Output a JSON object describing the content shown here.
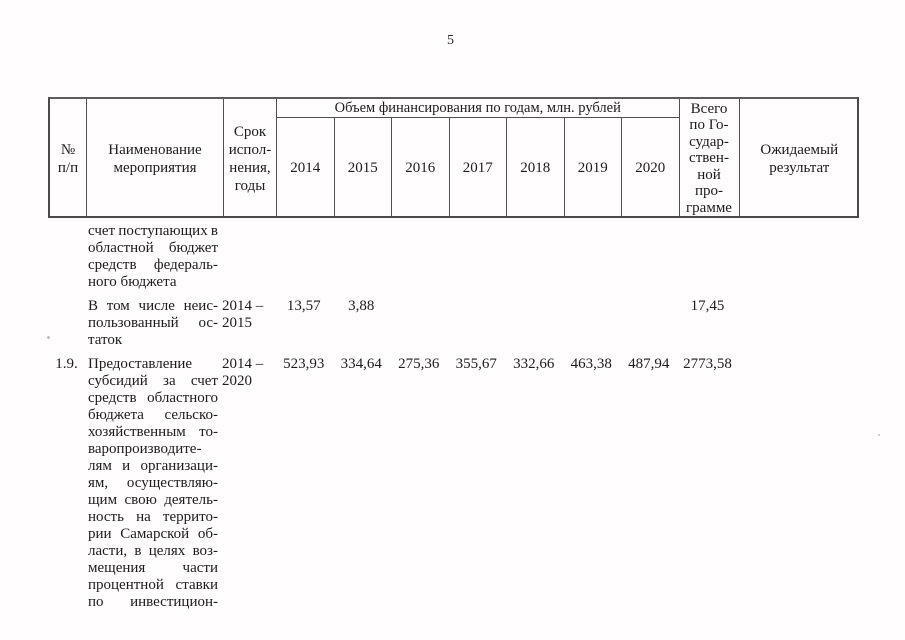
{
  "page_number": "5",
  "table": {
    "header": {
      "num_lines": [
        "№",
        "п/п"
      ],
      "name_lines": [
        "Наименование",
        "мероприятия"
      ],
      "term_lines": [
        "Срок",
        "испол-",
        "нения,",
        "годы"
      ],
      "finance_title": "Объем финансирования по годам, млн. рублей",
      "years": [
        "2014",
        "2015",
        "2016",
        "2017",
        "2018",
        "2019",
        "2020"
      ],
      "total_lines": [
        "Всего",
        "по Го-",
        "судар-",
        "ствен-",
        "ной",
        "про-",
        "грамме"
      ],
      "result_lines": [
        "Ожидаемый",
        "результат"
      ]
    },
    "rows": [
      {
        "num": "",
        "name_lines": [
          {
            "t": "счет поступающих в",
            "j": true
          },
          {
            "t": "областной бюджет",
            "j": true
          },
          {
            "t": "средств федераль-",
            "j": true
          },
          {
            "t": "ного бюджета",
            "j": false
          }
        ],
        "term_lines": [],
        "values": [
          "",
          "",
          "",
          "",
          "",
          "",
          ""
        ],
        "total": "",
        "result": ""
      },
      {
        "num": "",
        "name_lines": [
          {
            "t": "В том числе неис-",
            "j": true
          },
          {
            "t": "пользованный ос-",
            "j": true
          },
          {
            "t": "таток",
            "j": false
          }
        ],
        "term_lines": [
          "2014 –",
          "2015"
        ],
        "values": [
          "13,57",
          "3,88",
          "",
          "",
          "",
          "",
          ""
        ],
        "total": "17,45",
        "result": ""
      },
      {
        "num": "1.9.",
        "name_lines": [
          {
            "t": "Предоставление",
            "j": false
          },
          {
            "t": "субсидий за счет",
            "j": true
          },
          {
            "t": "средств областного",
            "j": true
          },
          {
            "t": "бюджета сельско-",
            "j": true
          },
          {
            "t": "хозяйственным то-",
            "j": true
          },
          {
            "t": "варопроизводите-",
            "j": false
          },
          {
            "t": "лям и организаци-",
            "j": true
          },
          {
            "t": "ям, осуществляю-",
            "j": true
          },
          {
            "t": "щим свою деятель-",
            "j": true
          },
          {
            "t": "ность на террито-",
            "j": true
          },
          {
            "t": "рии Самарской об-",
            "j": true
          },
          {
            "t": "ласти, в целях воз-",
            "j": true
          },
          {
            "t": "мещения части",
            "j": true
          },
          {
            "t": "процентной ставки",
            "j": true
          },
          {
            "t": "по инвестицион-",
            "j": true
          }
        ],
        "term_lines": [
          "2014 –",
          "2020"
        ],
        "values": [
          "523,93",
          "334,64",
          "275,36",
          "355,67",
          "332,66",
          "463,38",
          "487,94"
        ],
        "total": "2773,58",
        "result": ""
      }
    ]
  }
}
